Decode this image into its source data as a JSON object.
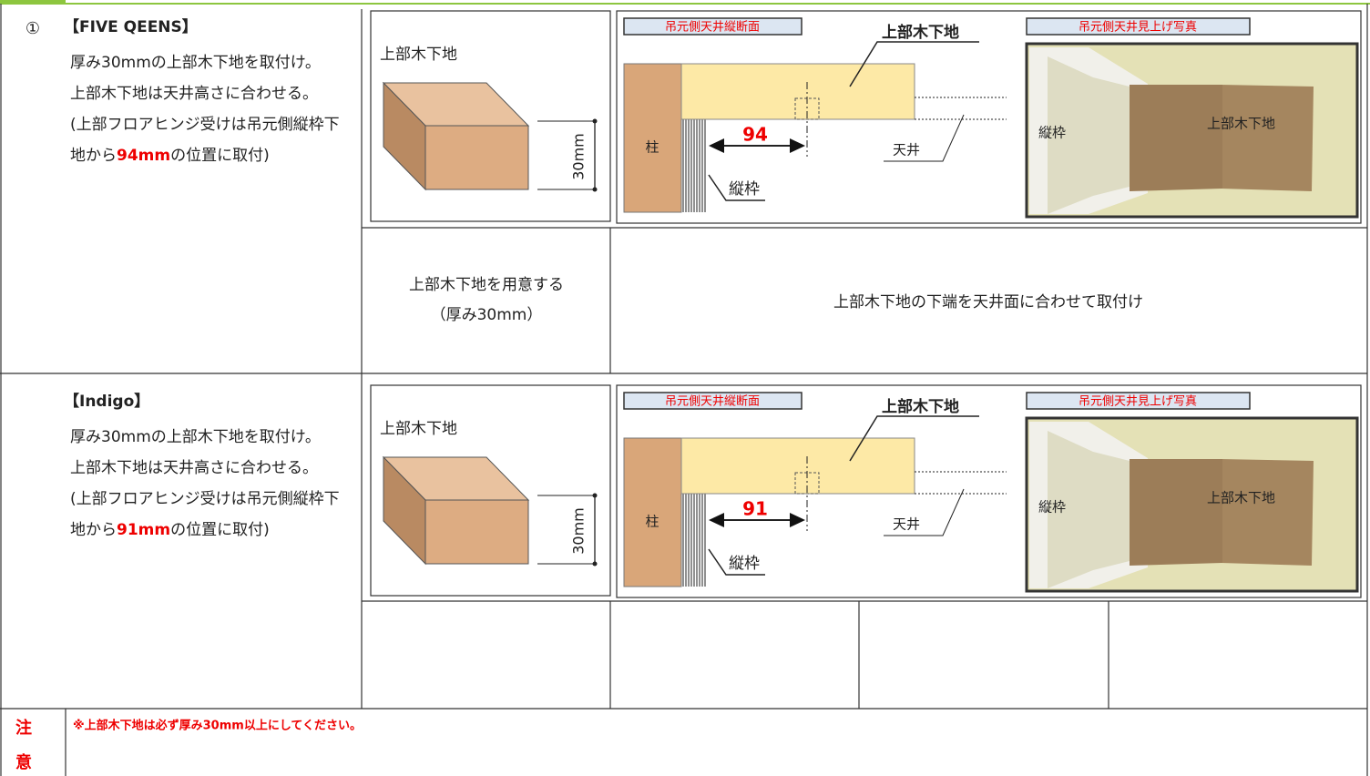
{
  "sections": [
    {
      "number": "①",
      "brand": "【FIVE QEENS】",
      "lines": [
        "厚み30mmの上部木下地を取付け。",
        "上部木下地は天井高さに合わせる。"
      ],
      "note_prefix": "(上部フロアヒンジ受けは吊元側縦枠下地から",
      "note_value": "94mm",
      "note_suffix": "の位置に取付)",
      "block": {
        "label": "上部木下地",
        "thickness": "30mm"
      },
      "section_view": {
        "title": "吊元側天井縦断面",
        "member": "上部木下地",
        "post": "柱",
        "distance": "94",
        "frame": "縦枠",
        "ceiling": "天井"
      },
      "photo": {
        "title": "吊元側天井見上げ写真",
        "frame": "縦枠",
        "member": "上部木下地"
      },
      "steps": [
        [
          "上部木下地を用意する",
          "（厚み30mm）"
        ],
        [
          "上部木下地の下端を天井面に合わせて取付け"
        ]
      ]
    },
    {
      "brand": "【Indigo】",
      "lines": [
        "厚み30mmの上部木下地を取付け。",
        "上部木下地は天井高さに合わせる。"
      ],
      "note_prefix": "(上部フロアヒンジ受けは吊元側縦枠下地から",
      "note_value": "91mm",
      "note_suffix": "の位置に取付)",
      "block": {
        "label": "上部木下地",
        "thickness": "30mm"
      },
      "section_view": {
        "title": "吊元側天井縦断面",
        "member": "上部木下地",
        "post": "柱",
        "distance": "91",
        "frame": "縦枠",
        "ceiling": "天井"
      },
      "photo": {
        "title": "吊元側天井見上げ写真",
        "frame": "縦枠",
        "member": "上部木下地"
      }
    }
  ],
  "caution": {
    "label": [
      "注",
      "意"
    ],
    "text": "※上部木下地は必ず厚み30mm以上にしてください。"
  }
}
